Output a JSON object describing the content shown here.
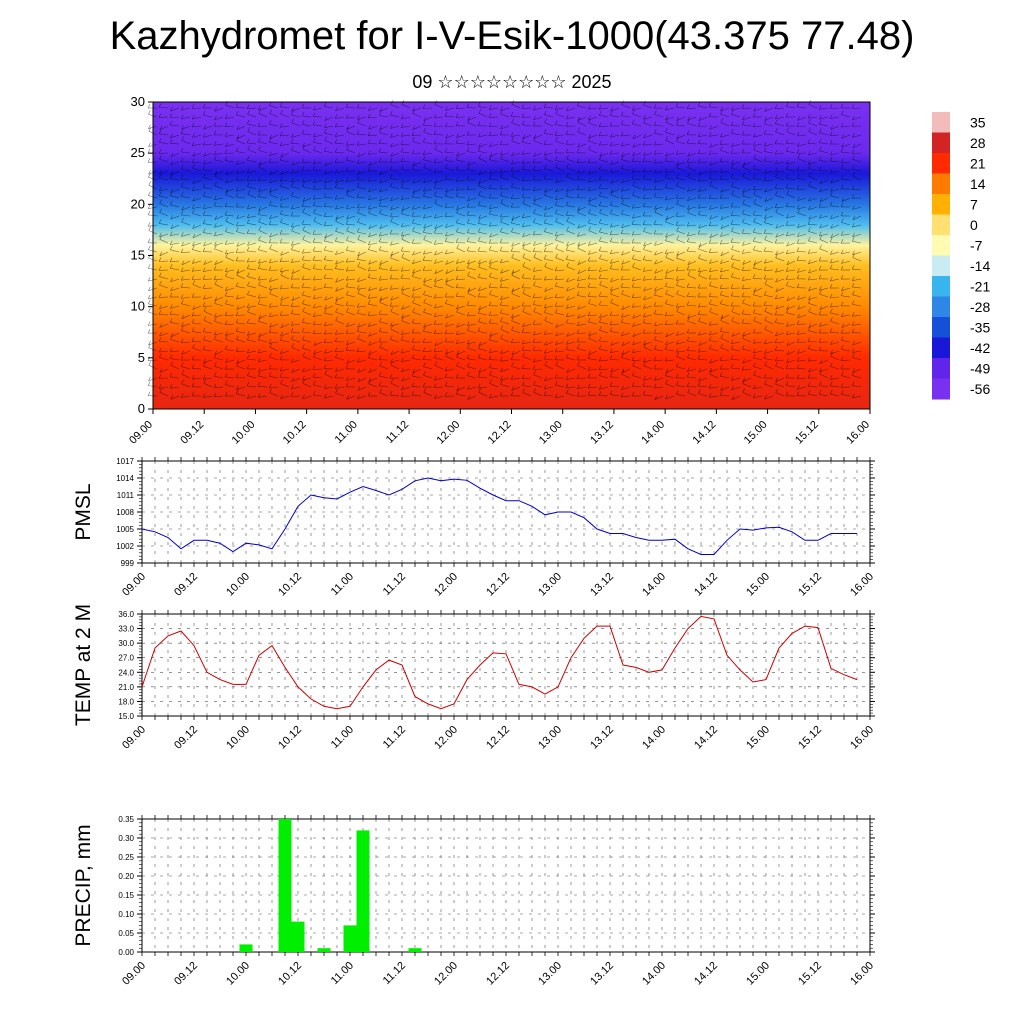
{
  "title": "Kazhydromet for I-V-Esik-1000(43.375 77.48)",
  "subtitle": "09 ☆☆☆☆☆☆☆☆ 2025",
  "colorbar": {
    "labels": [
      "35",
      "28",
      "21",
      "14",
      "7",
      "0",
      "-7",
      "-14",
      "-21",
      "-28",
      "-35",
      "-42",
      "-49",
      "-56"
    ],
    "colors": [
      "#f2bcbc",
      "#d42323",
      "#ff2a00",
      "#ff7b00",
      "#ffb000",
      "#ffe070",
      "#fffbb0",
      "#c8ecf2",
      "#38b4ee",
      "#2e86e6",
      "#1450d8",
      "#1a18d8",
      "#6024ea",
      "#7a30f0"
    ]
  },
  "chart_data": [
    {
      "type": "heatmap",
      "name": "upper-air-temperature",
      "ylim": [
        0,
        30
      ],
      "yticks": [
        0,
        5,
        10,
        15,
        20,
        25,
        30
      ],
      "xlim": [
        0,
        168
      ],
      "xtick_labels": [
        "09.00",
        "09.12",
        "10.00",
        "10.12",
        "11.00",
        "11.12",
        "12.00",
        "12.12",
        "13.00",
        "13.12",
        "14.00",
        "14.12",
        "15.00",
        "15.12",
        "16.00"
      ],
      "color_levels": [
        35,
        28,
        21,
        14,
        7,
        0,
        -7,
        -14,
        -21,
        -28,
        -35,
        -42,
        -49,
        -56
      ],
      "vertical_profile": [
        {
          "level": 0,
          "temp": 25
        },
        {
          "level": 5,
          "temp": 21
        },
        {
          "level": 10,
          "temp": 12
        },
        {
          "level": 14,
          "temp": 5
        },
        {
          "level": 16,
          "temp": -5
        },
        {
          "level": 18,
          "temp": -20
        },
        {
          "level": 20,
          "temp": -30
        },
        {
          "level": 23,
          "temp": -42
        },
        {
          "level": 25,
          "temp": -52
        },
        {
          "level": 30,
          "temp": -56
        }
      ]
    },
    {
      "type": "line",
      "name": "pmsl",
      "ylabel": "PMSL",
      "ylim": [
        999,
        1017
      ],
      "yticks": [
        999,
        1002,
        1005,
        1008,
        1011,
        1014,
        1017
      ],
      "xlim": [
        0,
        168
      ],
      "xtick_labels": [
        "09.00",
        "09.12",
        "10.00",
        "10.12",
        "11.00",
        "11.12",
        "12.00",
        "12.12",
        "13.00",
        "13.12",
        "14.00",
        "14.12",
        "15.00",
        "15.12",
        "16.00"
      ],
      "color": "#0000cc",
      "x": [
        0,
        3,
        6,
        9,
        12,
        15,
        18,
        21,
        24,
        27,
        30,
        33,
        36,
        39,
        42,
        45,
        48,
        51,
        54,
        57,
        60,
        63,
        66,
        69,
        72,
        75,
        78,
        81,
        84,
        87,
        90,
        93,
        96,
        99,
        102,
        105,
        108,
        111,
        114,
        117,
        120,
        123,
        126,
        129,
        132,
        135,
        138,
        141,
        144,
        147,
        150,
        153,
        156,
        159,
        162,
        165
      ],
      "y": [
        1005,
        1004.5,
        1003.5,
        1001.5,
        1003,
        1003,
        1002.5,
        1001,
        1002.5,
        1002.2,
        1001.5,
        1005,
        1009,
        1011,
        1010.5,
        1010.3,
        1011.5,
        1012.5,
        1011.8,
        1011,
        1012,
        1013.5,
        1014,
        1013.5,
        1013.8,
        1013.6,
        1012.2,
        1011,
        1010,
        1010,
        1009,
        1007.5,
        1008,
        1008,
        1007,
        1005,
        1004.2,
        1004.2,
        1003.5,
        1003,
        1003,
        1003.2,
        1001.5,
        1000.5,
        1000.5,
        1003,
        1005,
        1004.8,
        1005.2,
        1005.3,
        1004.5,
        1003,
        1003,
        1004.2,
        1004.2,
        1004.2
      ]
    },
    {
      "type": "line",
      "name": "temp-2m",
      "ylabel": "TEMP at 2 M",
      "ylim": [
        15,
        36
      ],
      "yticks": [
        15.0,
        18.0,
        21.0,
        24.0,
        27.0,
        30.0,
        33.0,
        36.0
      ],
      "ytick_labels": [
        "15.0",
        "18.0",
        "21.0",
        "24.0",
        "27.0",
        "30.0",
        "33.0",
        "36.0"
      ],
      "xlim": [
        0,
        168
      ],
      "xtick_labels": [
        "09.00",
        "09.12",
        "10.00",
        "10.12",
        "11.00",
        "11.12",
        "12.00",
        "12.12",
        "13.00",
        "13.12",
        "14.00",
        "14.12",
        "15.00",
        "15.12",
        "16.00"
      ],
      "color": "#cc0000",
      "x": [
        0,
        3,
        6,
        9,
        12,
        15,
        18,
        21,
        24,
        27,
        30,
        33,
        36,
        39,
        42,
        45,
        48,
        51,
        54,
        57,
        60,
        63,
        66,
        69,
        72,
        75,
        78,
        81,
        84,
        87,
        90,
        93,
        96,
        99,
        102,
        105,
        108,
        111,
        114,
        117,
        120,
        123,
        126,
        129,
        132,
        135,
        138,
        141,
        144,
        147,
        150,
        153,
        156,
        159,
        162,
        165
      ],
      "y": [
        21,
        29,
        31.5,
        32.5,
        29.5,
        24,
        22.5,
        21.5,
        21.5,
        27.5,
        29.5,
        25,
        21,
        18.5,
        17,
        16.5,
        17,
        21,
        24.5,
        26.5,
        25.5,
        19,
        17.5,
        16.5,
        17.5,
        22.5,
        25.5,
        28,
        27.8,
        21.5,
        21,
        19.5,
        21,
        27,
        31,
        33.5,
        33.5,
        25.5,
        25,
        24,
        24.5,
        29,
        33,
        35.5,
        35,
        27.5,
        24.5,
        22,
        22.5,
        29,
        32,
        33.5,
        33.2,
        24.8,
        23.5,
        22.5
      ]
    },
    {
      "type": "bar",
      "name": "precip",
      "ylabel": "PRECIP, mm",
      "ylim": [
        0,
        0.35
      ],
      "yticks": [
        0.0,
        0.05,
        0.1,
        0.15,
        0.2,
        0.25,
        0.3,
        0.35
      ],
      "ytick_labels": [
        "0.00",
        "0.05",
        "0.10",
        "0.15",
        "0.20",
        "0.25",
        "0.30",
        "0.35"
      ],
      "xlim": [
        0,
        168
      ],
      "xtick_labels": [
        "09.00",
        "09.12",
        "10.00",
        "10.12",
        "11.00",
        "11.12",
        "12.00",
        "12.12",
        "13.00",
        "13.12",
        "14.00",
        "14.12",
        "15.00",
        "15.12",
        "16.00"
      ],
      "color": "#00ee00",
      "bar_width_hours": 3,
      "x": [
        24,
        33,
        36,
        42,
        48,
        51,
        63
      ],
      "values": [
        0.02,
        0.35,
        0.08,
        0.01,
        0.07,
        0.32,
        0.01
      ]
    }
  ]
}
